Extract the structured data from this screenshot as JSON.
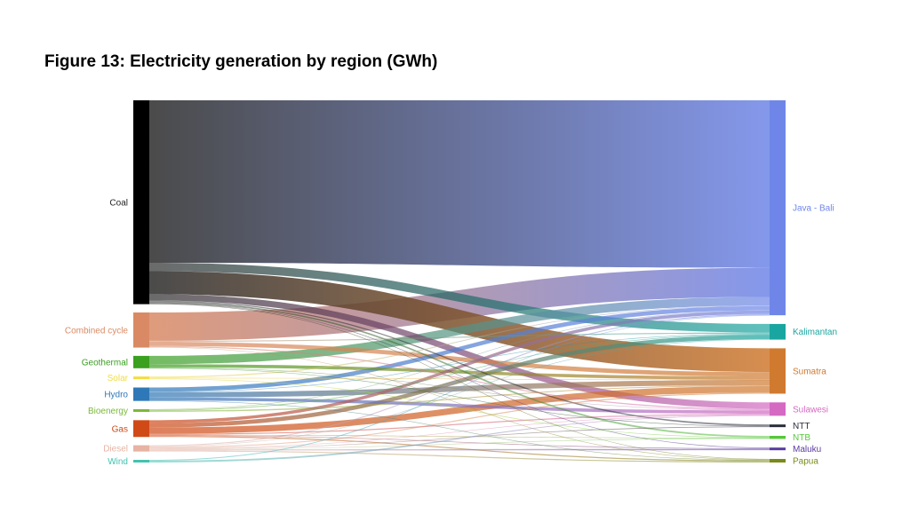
{
  "figure": {
    "title": "Figure 13: Electricity generation by region (GWh)"
  },
  "chart_data": {
    "type": "sankey",
    "title": "Figure 13: Electricity generation by region (GWh)",
    "sources": [
      {
        "name": "Coal",
        "color": "#000000"
      },
      {
        "name": "Combined cycle",
        "color": "#d98a64"
      },
      {
        "name": "Geothermal",
        "color": "#3aa020"
      },
      {
        "name": "Solar",
        "color": "#f5dc3c"
      },
      {
        "name": "Hydro",
        "color": "#2f78b8"
      },
      {
        "name": "Bioenergy",
        "color": "#7cb83a"
      },
      {
        "name": "Gas",
        "color": "#d04a18"
      },
      {
        "name": "Diesel",
        "color": "#e7b3a3"
      },
      {
        "name": "Wind",
        "color": "#42c3b0"
      }
    ],
    "targets": [
      {
        "name": "Java - Bali",
        "color": "#6f86e8"
      },
      {
        "name": "Kalimantan",
        "color": "#1aa6a0"
      },
      {
        "name": "Sumatra",
        "color": "#d07a30"
      },
      {
        "name": "Sulawesi",
        "color": "#d46ac2"
      },
      {
        "name": "NTT",
        "color": "#2a2d3a"
      },
      {
        "name": "NTB",
        "color": "#56c83a"
      },
      {
        "name": "Maluku",
        "color": "#5a3ca0"
      },
      {
        "name": "Papua",
        "color": "#7a8a1a"
      }
    ],
    "flows": [
      {
        "source": "Coal",
        "target": "Java - Bali",
        "value": 155
      },
      {
        "source": "Coal",
        "target": "Kalimantan",
        "value": 8
      },
      {
        "source": "Coal",
        "target": "Sumatra",
        "value": 22
      },
      {
        "source": "Coal",
        "target": "Sulawesi",
        "value": 6
      },
      {
        "source": "Coal",
        "target": "NTT",
        "value": 1
      },
      {
        "source": "Coal",
        "target": "NTB",
        "value": 1.5
      },
      {
        "source": "Coal",
        "target": "Maluku",
        "value": 0.5
      },
      {
        "source": "Coal",
        "target": "Papua",
        "value": 0.5
      },
      {
        "source": "Combined cycle",
        "target": "Java - Bali",
        "value": 27
      },
      {
        "source": "Combined cycle",
        "target": "Kalimantan",
        "value": 1
      },
      {
        "source": "Combined cycle",
        "target": "Sumatra",
        "value": 4
      },
      {
        "source": "Combined cycle",
        "target": "Sulawesi",
        "value": 1
      },
      {
        "source": "Combined cycle",
        "target": "Papua",
        "value": 0.5
      },
      {
        "source": "Geothermal",
        "target": "Java - Bali",
        "value": 8
      },
      {
        "source": "Geothermal",
        "target": "Sumatra",
        "value": 3
      },
      {
        "source": "Geothermal",
        "target": "Sulawesi",
        "value": 0.5
      },
      {
        "source": "Geothermal",
        "target": "NTT",
        "value": 0.3
      },
      {
        "source": "Solar",
        "target": "Java - Bali",
        "value": 0.5
      },
      {
        "source": "Solar",
        "target": "Sumatra",
        "value": 0.3
      },
      {
        "source": "Solar",
        "target": "NTB",
        "value": 0.3
      },
      {
        "source": "Hydro",
        "target": "Java - Bali",
        "value": 4
      },
      {
        "source": "Hydro",
        "target": "Kalimantan",
        "value": 0.5
      },
      {
        "source": "Hydro",
        "target": "Sumatra",
        "value": 5
      },
      {
        "source": "Hydro",
        "target": "Sulawesi",
        "value": 3
      },
      {
        "source": "Hydro",
        "target": "Papua",
        "value": 0.3
      },
      {
        "source": "Bioenergy",
        "target": "Java - Bali",
        "value": 0.3
      },
      {
        "source": "Bioenergy",
        "target": "Kalimantan",
        "value": 0.5
      },
      {
        "source": "Bioenergy",
        "target": "Sumatra",
        "value": 0.7
      },
      {
        "source": "Gas",
        "target": "Java - Bali",
        "value": 3
      },
      {
        "source": "Gas",
        "target": "Kalimantan",
        "value": 4
      },
      {
        "source": "Gas",
        "target": "Sumatra",
        "value": 6
      },
      {
        "source": "Gas",
        "target": "Sulawesi",
        "value": 1
      },
      {
        "source": "Gas",
        "target": "NTB",
        "value": 0.5
      },
      {
        "source": "Gas",
        "target": "Maluku",
        "value": 0.5
      },
      {
        "source": "Gas",
        "target": "Papua",
        "value": 1
      },
      {
        "source": "Diesel",
        "target": "Java - Bali",
        "value": 1
      },
      {
        "source": "Diesel",
        "target": "Kalimantan",
        "value": 0.5
      },
      {
        "source": "Diesel",
        "target": "Sumatra",
        "value": 1
      },
      {
        "source": "Diesel",
        "target": "Sulawesi",
        "value": 0.5
      },
      {
        "source": "Diesel",
        "target": "NTT",
        "value": 0.5
      },
      {
        "source": "Diesel",
        "target": "NTB",
        "value": 0.5
      },
      {
        "source": "Diesel",
        "target": "Maluku",
        "value": 1
      },
      {
        "source": "Diesel",
        "target": "Papua",
        "value": 1
      },
      {
        "source": "Wind",
        "target": "Java - Bali",
        "value": 0.2
      },
      {
        "source": "Wind",
        "target": "Sulawesi",
        "value": 0.4
      }
    ]
  }
}
